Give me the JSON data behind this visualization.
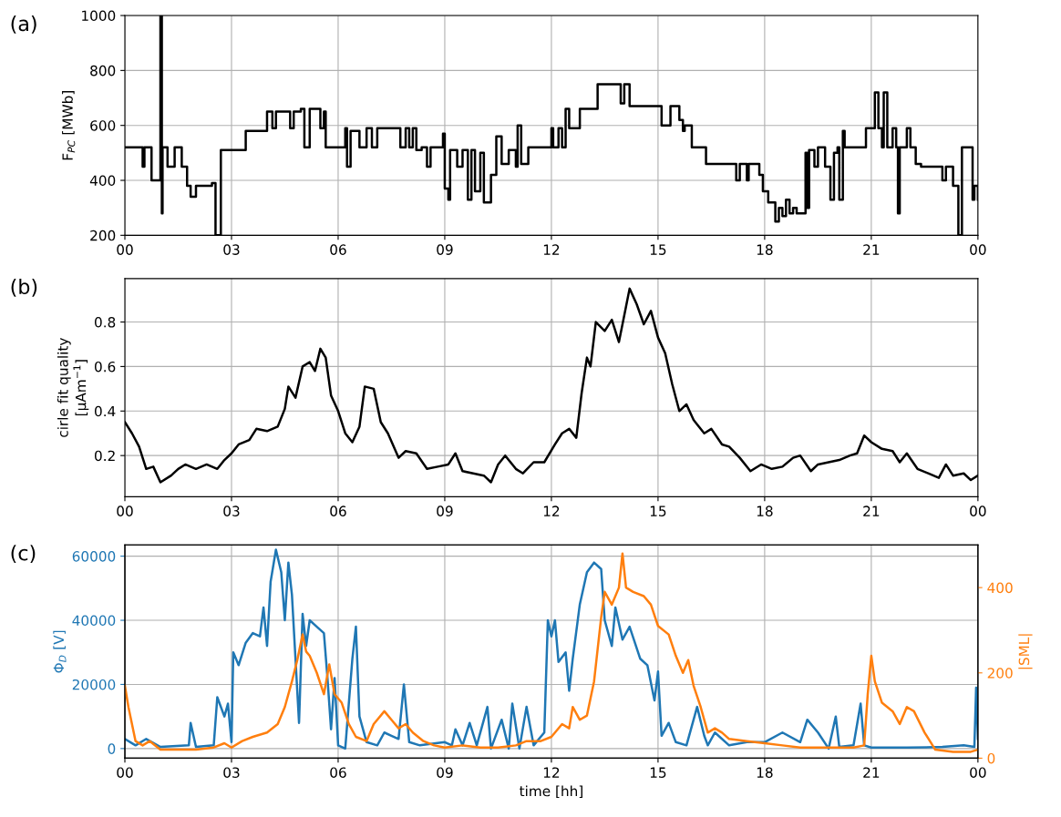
{
  "chart_data": [
    {
      "type": "step",
      "title": "(a)",
      "ylabel": "F$_{PC}$ [MWb]",
      "grid": true,
      "xlim": [
        0,
        24
      ],
      "xticks": [
        {
          "value": 0,
          "label": "00"
        },
        {
          "value": 3,
          "label": "03"
        },
        {
          "value": 6,
          "label": "06"
        },
        {
          "value": 9,
          "label": "09"
        },
        {
          "value": 12,
          "label": "12"
        },
        {
          "value": 15,
          "label": "15"
        },
        {
          "value": 18,
          "label": "18"
        },
        {
          "value": 21,
          "label": "21"
        },
        {
          "value": 24,
          "label": "00"
        }
      ],
      "ylim": [
        200,
        1000
      ],
      "yticks": [
        200,
        400,
        600,
        800,
        1000
      ],
      "series": [
        {
          "color": "#000000",
          "x": [
            0,
            0.5,
            0.55,
            0.75,
            0.8,
            0.95,
            1.0,
            1.04,
            1.06,
            1.1,
            1.2,
            1.4,
            1.6,
            1.75,
            1.85,
            2.0,
            2.45,
            2.55,
            2.7,
            3.4,
            4.0,
            4.15,
            4.25,
            4.65,
            4.75,
            4.95,
            5.05,
            5.2,
            5.5,
            5.6,
            5.65,
            6.2,
            6.25,
            6.35,
            6.6,
            6.8,
            6.95,
            7.1,
            7.75,
            7.9,
            8.0,
            8.1,
            8.2,
            8.35,
            8.5,
            8.6,
            8.95,
            9.0,
            9.1,
            9.15,
            9.35,
            9.5,
            9.65,
            9.75,
            9.85,
            10.0,
            10.1,
            10.3,
            10.45,
            10.6,
            10.8,
            11.0,
            11.05,
            11.15,
            11.35,
            12.0,
            12.05,
            12.2,
            12.3,
            12.4,
            12.5,
            12.8,
            13.3,
            13.9,
            13.95,
            14.05,
            14.2,
            15.1,
            15.3,
            15.35,
            15.6,
            15.7,
            15.75,
            15.95,
            16.35,
            17.2,
            17.3,
            17.5,
            17.55,
            17.85,
            17.95,
            18.1,
            18.3,
            18.4,
            18.5,
            18.6,
            18.7,
            18.8,
            18.9,
            19.15,
            19.2,
            19.25,
            19.4,
            19.5,
            19.7,
            19.85,
            19.95,
            20.05,
            20.1,
            20.2,
            20.25,
            20.85,
            21.1,
            21.2,
            21.3,
            21.35,
            21.45,
            21.6,
            21.7,
            21.75,
            21.8,
            22.0,
            22.1,
            22.25,
            22.4,
            23.0,
            23.1,
            23.3,
            23.45,
            23.55,
            23.85,
            23.9,
            24.0
          ],
          "values": [
            520,
            450,
            520,
            400,
            400,
            400,
            1000,
            280,
            520,
            520,
            450,
            520,
            450,
            380,
            340,
            380,
            390,
            200,
            510,
            580,
            650,
            590,
            650,
            590,
            650,
            660,
            520,
            660,
            590,
            650,
            520,
            590,
            450,
            580,
            520,
            590,
            520,
            590,
            520,
            590,
            520,
            590,
            510,
            520,
            450,
            520,
            570,
            370,
            330,
            510,
            450,
            510,
            330,
            510,
            360,
            500,
            320,
            420,
            560,
            460,
            510,
            450,
            600,
            460,
            520,
            590,
            520,
            590,
            520,
            660,
            590,
            660,
            750,
            750,
            680,
            750,
            670,
            600,
            600,
            670,
            620,
            580,
            600,
            520,
            460,
            400,
            460,
            400,
            460,
            420,
            360,
            320,
            250,
            300,
            270,
            330,
            280,
            300,
            280,
            500,
            300,
            510,
            450,
            520,
            450,
            330,
            500,
            520,
            330,
            580,
            520,
            590,
            720,
            590,
            520,
            720,
            520,
            590,
            520,
            280,
            520,
            590,
            520,
            460,
            450,
            400,
            450,
            380,
            200,
            520,
            330,
            380,
            330
          ]
        }
      ]
    },
    {
      "type": "line",
      "title": "(b)",
      "ylabel": "cirle fit quality\n[μAm$^{−1}$]",
      "grid": true,
      "xlim": [
        0,
        24
      ],
      "xticks": [
        {
          "value": 0,
          "label": "00"
        },
        {
          "value": 3,
          "label": "03"
        },
        {
          "value": 6,
          "label": "06"
        },
        {
          "value": 9,
          "label": "09"
        },
        {
          "value": 12,
          "label": "12"
        },
        {
          "value": 15,
          "label": "15"
        },
        {
          "value": 18,
          "label": "18"
        },
        {
          "value": 21,
          "label": "21"
        },
        {
          "value": 24,
          "label": "00"
        }
      ],
      "ylim": [
        0.015,
        0.995
      ],
      "yticks": [
        0.2,
        0.4,
        0.6,
        0.8
      ],
      "series": [
        {
          "color": "#000000",
          "x": [
            0,
            0.2,
            0.4,
            0.6,
            0.8,
            1.0,
            1.3,
            1.5,
            1.7,
            2.0,
            2.3,
            2.6,
            2.8,
            3.0,
            3.2,
            3.5,
            3.7,
            4.0,
            4.3,
            4.5,
            4.6,
            4.8,
            5.0,
            5.2,
            5.35,
            5.5,
            5.65,
            5.8,
            6.0,
            6.2,
            6.4,
            6.6,
            6.75,
            7.0,
            7.2,
            7.4,
            7.7,
            7.9,
            8.2,
            8.5,
            8.8,
            9.1,
            9.3,
            9.5,
            9.8,
            10.1,
            10.3,
            10.5,
            10.7,
            11.0,
            11.2,
            11.5,
            11.8,
            12.1,
            12.3,
            12.5,
            12.7,
            12.85,
            13.0,
            13.1,
            13.25,
            13.5,
            13.7,
            13.9,
            14.1,
            14.2,
            14.4,
            14.6,
            14.8,
            15.0,
            15.2,
            15.4,
            15.6,
            15.8,
            16.0,
            16.3,
            16.5,
            16.8,
            17.0,
            17.3,
            17.6,
            17.9,
            18.2,
            18.5,
            18.8,
            19.0,
            19.3,
            19.5,
            19.8,
            20.1,
            20.4,
            20.6,
            20.8,
            21.0,
            21.3,
            21.6,
            21.8,
            22.0,
            22.3,
            22.6,
            22.9,
            23.1,
            23.3,
            23.6,
            23.8,
            24.0
          ],
          "values": [
            0.35,
            0.3,
            0.24,
            0.14,
            0.15,
            0.08,
            0.11,
            0.14,
            0.16,
            0.14,
            0.16,
            0.14,
            0.18,
            0.21,
            0.25,
            0.27,
            0.32,
            0.31,
            0.33,
            0.41,
            0.51,
            0.46,
            0.6,
            0.62,
            0.58,
            0.68,
            0.64,
            0.47,
            0.4,
            0.3,
            0.26,
            0.33,
            0.51,
            0.5,
            0.35,
            0.3,
            0.19,
            0.22,
            0.21,
            0.14,
            0.15,
            0.16,
            0.21,
            0.13,
            0.12,
            0.11,
            0.08,
            0.16,
            0.2,
            0.14,
            0.12,
            0.17,
            0.17,
            0.25,
            0.3,
            0.32,
            0.28,
            0.48,
            0.64,
            0.6,
            0.8,
            0.76,
            0.81,
            0.71,
            0.87,
            0.95,
            0.88,
            0.79,
            0.85,
            0.73,
            0.66,
            0.52,
            0.4,
            0.43,
            0.36,
            0.3,
            0.32,
            0.25,
            0.24,
            0.19,
            0.13,
            0.16,
            0.14,
            0.15,
            0.19,
            0.2,
            0.13,
            0.16,
            0.17,
            0.18,
            0.2,
            0.21,
            0.29,
            0.26,
            0.23,
            0.22,
            0.17,
            0.21,
            0.14,
            0.12,
            0.1,
            0.16,
            0.11,
            0.12,
            0.09,
            0.11
          ]
        }
      ]
    },
    {
      "type": "line",
      "title": "(c)",
      "xlabel": "time [hh]",
      "ylabel": "Φ$_{D}$ [V]",
      "y2label": "|SML|",
      "grid": true,
      "xlim": [
        0,
        24
      ],
      "xticks": [
        {
          "value": 0,
          "label": "00"
        },
        {
          "value": 3,
          "label": "03"
        },
        {
          "value": 6,
          "label": "06"
        },
        {
          "value": 9,
          "label": "09"
        },
        {
          "value": 12,
          "label": "12"
        },
        {
          "value": 15,
          "label": "15"
        },
        {
          "value": 18,
          "label": "18"
        },
        {
          "value": 21,
          "label": "21"
        },
        {
          "value": 24,
          "label": "00"
        }
      ],
      "ylim": [
        -3000,
        63500
      ],
      "yticks": [
        0,
        20000,
        40000,
        60000
      ],
      "y2lim": [
        0,
        500
      ],
      "y2ticks": [
        0,
        200,
        400
      ],
      "series": [
        {
          "color": "#1f77b4",
          "axis": "y",
          "x": [
            0,
            0.3,
            0.6,
            1.0,
            1.8,
            1.85,
            2.0,
            2.5,
            2.6,
            2.8,
            2.9,
            3.0,
            3.05,
            3.2,
            3.4,
            3.6,
            3.8,
            3.9,
            4.0,
            4.1,
            4.25,
            4.4,
            4.5,
            4.6,
            4.7,
            4.8,
            4.9,
            5.0,
            5.1,
            5.2,
            5.4,
            5.6,
            5.7,
            5.8,
            5.9,
            6.0,
            6.2,
            6.4,
            6.5,
            6.6,
            6.8,
            7.1,
            7.3,
            7.5,
            7.7,
            7.85,
            8.0,
            8.3,
            9.0,
            9.2,
            9.3,
            9.5,
            9.7,
            9.9,
            10.2,
            10.3,
            10.6,
            10.8,
            10.9,
            11.1,
            11.3,
            11.5,
            11.8,
            11.9,
            12.0,
            12.1,
            12.2,
            12.4,
            12.5,
            12.6,
            12.8,
            13.0,
            13.2,
            13.4,
            13.5,
            13.7,
            13.8,
            14.0,
            14.2,
            14.5,
            14.7,
            14.9,
            15.0,
            15.1,
            15.3,
            15.5,
            15.8,
            16.1,
            16.3,
            16.4,
            16.6,
            17.0,
            17.5,
            18.0,
            18.5,
            19.0,
            19.2,
            19.5,
            19.8,
            20.0,
            20.1,
            20.5,
            20.7,
            20.8,
            21.0,
            22.0,
            23.0,
            23.6,
            23.9,
            23.95,
            24.0
          ],
          "values": [
            3000,
            1000,
            3000,
            500,
            1000,
            8000,
            500,
            1000,
            16000,
            10000,
            14000,
            2000,
            30000,
            26000,
            33000,
            36000,
            35000,
            44000,
            32000,
            52000,
            62000,
            55000,
            40000,
            58000,
            48000,
            28000,
            8000,
            42000,
            32000,
            40000,
            38000,
            36000,
            22000,
            6000,
            22000,
            1000,
            0,
            28000,
            38000,
            10000,
            2000,
            1000,
            5000,
            4000,
            3000,
            20000,
            2000,
            1000,
            2000,
            1000,
            6000,
            1000,
            8000,
            1000,
            13000,
            0,
            9000,
            0,
            14000,
            0,
            13000,
            1000,
            5000,
            40000,
            35000,
            40000,
            27000,
            30000,
            18000,
            28000,
            45000,
            55000,
            58000,
            56000,
            40000,
            32000,
            44000,
            34000,
            38000,
            28000,
            26000,
            15000,
            24000,
            4000,
            8000,
            2000,
            1000,
            13000,
            4000,
            1000,
            5000,
            1000,
            2000,
            2000,
            5000,
            2000,
            9000,
            5000,
            0,
            10000,
            500,
            1000,
            14000,
            1000,
            300,
            300,
            500,
            1000,
            500,
            19000,
            3000
          ]
        },
        {
          "color": "#ff7f0e",
          "axis": "y2",
          "x": [
            0,
            0.1,
            0.3,
            0.5,
            0.7,
            1.0,
            1.5,
            2.0,
            2.5,
            2.8,
            3.0,
            3.3,
            3.6,
            4.0,
            4.3,
            4.5,
            4.7,
            4.85,
            5.0,
            5.1,
            5.2,
            5.4,
            5.6,
            5.75,
            5.9,
            6.1,
            6.3,
            6.5,
            6.8,
            7.0,
            7.3,
            7.5,
            7.7,
            7.9,
            8.1,
            8.4,
            8.7,
            9.0,
            9.5,
            10.0,
            10.5,
            11.0,
            11.3,
            11.7,
            12.0,
            12.3,
            12.5,
            12.6,
            12.8,
            13.0,
            13.2,
            13.4,
            13.5,
            13.7,
            13.9,
            14.0,
            14.1,
            14.3,
            14.6,
            14.8,
            15.0,
            15.3,
            15.5,
            15.7,
            15.85,
            16.0,
            16.2,
            16.4,
            16.6,
            16.8,
            17.0,
            17.5,
            18.0,
            18.5,
            19.0,
            19.5,
            20.0,
            20.5,
            20.8,
            20.9,
            21.0,
            21.1,
            21.3,
            21.6,
            21.8,
            22.0,
            22.2,
            22.5,
            22.8,
            23.3,
            23.8,
            24.0
          ],
          "values": [
            170,
            120,
            40,
            30,
            40,
            20,
            20,
            20,
            25,
            35,
            25,
            40,
            50,
            60,
            80,
            120,
            180,
            230,
            290,
            250,
            240,
            200,
            150,
            220,
            150,
            130,
            80,
            50,
            40,
            80,
            110,
            90,
            70,
            80,
            60,
            40,
            30,
            25,
            30,
            25,
            25,
            30,
            40,
            40,
            50,
            80,
            70,
            120,
            90,
            100,
            180,
            330,
            390,
            360,
            400,
            480,
            400,
            390,
            380,
            360,
            310,
            290,
            240,
            200,
            230,
            170,
            120,
            60,
            70,
            60,
            45,
            40,
            35,
            30,
            25,
            25,
            25,
            25,
            30,
            150,
            240,
            180,
            130,
            110,
            80,
            120,
            110,
            60,
            20,
            15,
            15,
            20
          ]
        }
      ]
    }
  ]
}
